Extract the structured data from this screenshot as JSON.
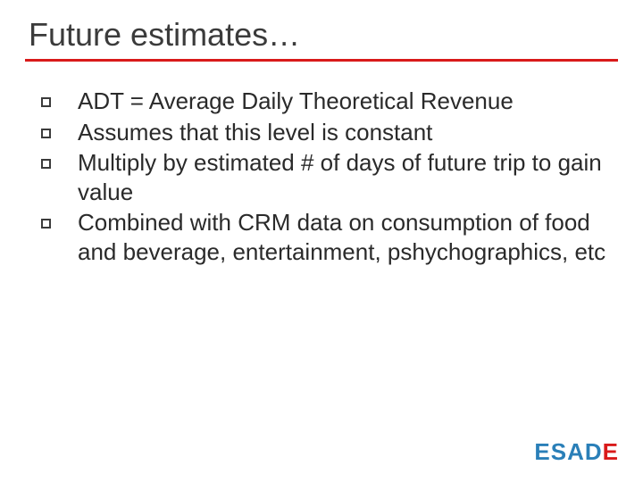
{
  "title": "Future estimates…",
  "underline_color": "#d91a1a",
  "bullets": [
    {
      "text": "ADT = Average Daily Theoretical Revenue"
    },
    {
      "text": "Assumes that this level is constant"
    },
    {
      "text": "Multiply by estimated # of days of future trip to gain value"
    },
    {
      "text": "Combined with CRM data on consumption of food and beverage, entertainment, pshychographics, etc"
    }
  ],
  "logo": {
    "prefix": "ESAD",
    "suffix": "E",
    "prefix_color": "#2a7fb8",
    "suffix_color": "#d91a1a"
  },
  "bullet_marker_border": "#3b3b3b",
  "text_color": "#2a2a2a",
  "title_color": "#3b3b3b",
  "title_fontsize": 36,
  "body_fontsize": 26,
  "background_color": "#ffffff"
}
